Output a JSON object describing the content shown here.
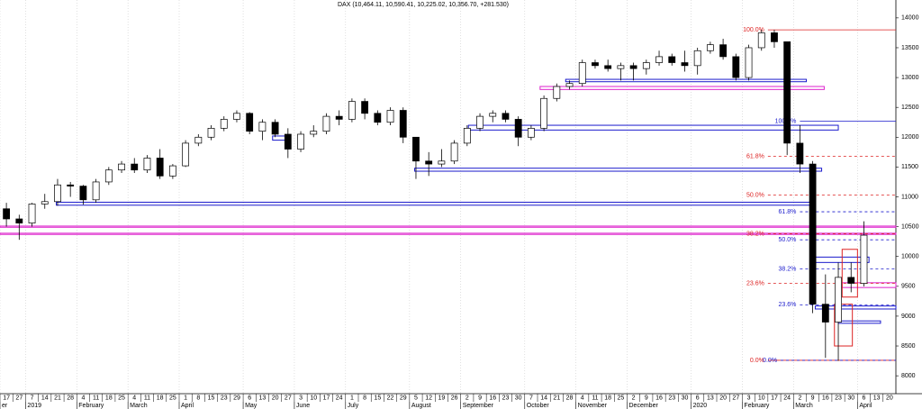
{
  "chart_data": {
    "type": "candlestick",
    "title": "DAX (10,464.11, 10,590.41, 10,225.02, 10,356.70, +281.530)",
    "ylim": [
      7700,
      14300
    ],
    "yticks": [
      8000,
      8500,
      9000,
      9500,
      10000,
      10500,
      11000,
      11500,
      12000,
      12500,
      13000,
      13500,
      14000
    ],
    "months": [
      {
        "name": "er",
        "days": [
          "17",
          "27"
        ]
      },
      {
        "name": "2019",
        "days": [
          "7",
          "14",
          "21",
          "28"
        ]
      },
      {
        "name": "February",
        "days": [
          "4",
          "11",
          "18",
          "25"
        ]
      },
      {
        "name": "March",
        "days": [
          "4",
          "11",
          "18",
          "25"
        ]
      },
      {
        "name": "April",
        "days": [
          "1",
          "8",
          "15",
          "23",
          "29"
        ]
      },
      {
        "name": "May",
        "days": [
          "6",
          "13",
          "20",
          "27"
        ]
      },
      {
        "name": "June",
        "days": [
          "3",
          "10",
          "17",
          "24"
        ]
      },
      {
        "name": "July",
        "days": [
          "1",
          "8",
          "15",
          "22",
          "29"
        ]
      },
      {
        "name": "August",
        "days": [
          "5",
          "12",
          "19",
          "26"
        ]
      },
      {
        "name": "September",
        "days": [
          "2",
          "9",
          "16",
          "23",
          "30"
        ]
      },
      {
        "name": "October",
        "days": [
          "7",
          "14",
          "21",
          "28"
        ]
      },
      {
        "name": "November",
        "days": [
          "4",
          "11",
          "18",
          "25"
        ]
      },
      {
        "name": "December",
        "days": [
          "2",
          "9",
          "16",
          "23",
          "30"
        ]
      },
      {
        "name": "2020",
        "days": [
          "6",
          "13",
          "20",
          "27"
        ]
      },
      {
        "name": "February",
        "days": [
          "3",
          "10",
          "17",
          "24"
        ]
      },
      {
        "name": "March",
        "days": [
          "2",
          "9",
          "16",
          "23",
          "30"
        ]
      },
      {
        "name": "April",
        "days": [
          "6",
          "13",
          "20"
        ]
      }
    ],
    "candles": [
      [
        10800,
        10900,
        10500,
        10630
      ],
      [
        10630,
        10700,
        10280,
        10560
      ],
      [
        10560,
        10900,
        10500,
        10880
      ],
      [
        10880,
        11050,
        10800,
        10920
      ],
      [
        10920,
        11300,
        10850,
        11200
      ],
      [
        11200,
        11250,
        11000,
        11180
      ],
      [
        11180,
        11200,
        10870,
        10950
      ],
      [
        10950,
        11300,
        10900,
        11250
      ],
      [
        11250,
        11500,
        11200,
        11450
      ],
      [
        11450,
        11600,
        11400,
        11550
      ],
      [
        11550,
        11650,
        11400,
        11450
      ],
      [
        11450,
        11700,
        11400,
        11650
      ],
      [
        11650,
        11800,
        11300,
        11350
      ],
      [
        11350,
        11550,
        11300,
        11520
      ],
      [
        11520,
        11950,
        11500,
        11900
      ],
      [
        11900,
        12050,
        11850,
        12000
      ],
      [
        12000,
        12200,
        11950,
        12150
      ],
      [
        12150,
        12350,
        12100,
        12300
      ],
      [
        12300,
        12450,
        12250,
        12400
      ],
      [
        12400,
        12420,
        12050,
        12100
      ],
      [
        12100,
        12300,
        11950,
        12250
      ],
      [
        12250,
        12300,
        12000,
        12050
      ],
      [
        12050,
        12150,
        11650,
        11800
      ],
      [
        11800,
        12100,
        11750,
        12050
      ],
      [
        12050,
        12200,
        12000,
        12100
      ],
      [
        12100,
        12400,
        12050,
        12350
      ],
      [
        12350,
        12450,
        12200,
        12300
      ],
      [
        12300,
        12650,
        12250,
        12600
      ],
      [
        12600,
        12650,
        12300,
        12400
      ],
      [
        12400,
        12450,
        12200,
        12250
      ],
      [
        12250,
        12500,
        12200,
        12450
      ],
      [
        12450,
        12500,
        11900,
        12000
      ],
      [
        12000,
        12000,
        11300,
        11600
      ],
      [
        11600,
        11750,
        11350,
        11550
      ],
      [
        11550,
        11800,
        11500,
        11600
      ],
      [
        11600,
        11950,
        11550,
        11900
      ],
      [
        11900,
        12200,
        11850,
        12150
      ],
      [
        12150,
        12400,
        12100,
        12350
      ],
      [
        12350,
        12450,
        12250,
        12400
      ],
      [
        12400,
        12450,
        12250,
        12300
      ],
      [
        12300,
        12350,
        11850,
        12000
      ],
      [
        12000,
        12200,
        11950,
        12150
      ],
      [
        12150,
        12700,
        12100,
        12650
      ],
      [
        12650,
        12900,
        12600,
        12850
      ],
      [
        12850,
        12950,
        12800,
        12900
      ],
      [
        12900,
        13300,
        12850,
        13250
      ],
      [
        13250,
        13300,
        13150,
        13200
      ],
      [
        13200,
        13300,
        13100,
        13150
      ],
      [
        13150,
        13250,
        12950,
        13200
      ],
      [
        13200,
        13250,
        12950,
        13150
      ],
      [
        13150,
        13300,
        13050,
        13250
      ],
      [
        13250,
        13450,
        13200,
        13350
      ],
      [
        13350,
        13400,
        13200,
        13250
      ],
      [
        13250,
        13450,
        13100,
        13200
      ],
      [
        13200,
        13500,
        13050,
        13450
      ],
      [
        13450,
        13600,
        13400,
        13550
      ],
      [
        13550,
        13650,
        13300,
        13350
      ],
      [
        13350,
        13400,
        12950,
        13000
      ],
      [
        13000,
        13550,
        12950,
        13500
      ],
      [
        13500,
        13800,
        13450,
        13750
      ],
      [
        13750,
        13800,
        13500,
        13600
      ],
      [
        13600,
        13600,
        11700,
        11900
      ],
      [
        11900,
        12200,
        11400,
        11550
      ],
      [
        11550,
        11600,
        9050,
        9200
      ],
      [
        9200,
        9700,
        8300,
        8900
      ],
      [
        8900,
        9900,
        8250,
        9650
      ],
      [
        9650,
        9900,
        9400,
        9550
      ],
      [
        9550,
        10590,
        9500,
        10357
      ]
    ],
    "zones": [
      {
        "from": 3.9,
        "to": 62.8,
        "low": 10860,
        "high": 10910,
        "color": "#1a1acc"
      },
      {
        "from": 31.9,
        "to": 63.7,
        "low": 11430,
        "high": 11480,
        "color": "#1a1acc"
      },
      {
        "from": 36.1,
        "to": 65,
        "low": 12120,
        "high": 12200,
        "color": "#1a1acc"
      },
      {
        "from": 43.7,
        "to": 62.5,
        "low": 12930,
        "high": 12970,
        "color": "#1a1acc"
      },
      {
        "from": 20.8,
        "to": 22,
        "low": 11950,
        "high": 12020,
        "color": "#1a1acc"
      },
      {
        "from": 63.2,
        "to": 67.4,
        "low": 9900,
        "high": 9990,
        "color": "#1a1acc"
      },
      {
        "from": 63.2,
        "to": 69.5,
        "low": 9120,
        "high": 9170,
        "color": "#1a1acc"
      },
      {
        "from": 65,
        "to": 68.3,
        "low": 8880,
        "high": 8920,
        "color": "#1a1acc"
      },
      {
        "from": -0.5,
        "to": 69.5,
        "low": 10490,
        "high": 10510,
        "color": "#dd22cc"
      },
      {
        "from": -0.5,
        "to": 69.5,
        "low": 10370,
        "high": 10390,
        "color": "#dd22cc"
      },
      {
        "from": 41.7,
        "to": 63.9,
        "low": 12800,
        "high": 12850,
        "color": "#dd22cc"
      },
      {
        "from": 65.3,
        "to": 69.5,
        "low": 9480,
        "high": 9560,
        "color": "#dd22cc"
      },
      {
        "from": 65.3,
        "to": 66.5,
        "low": 9320,
        "high": 10120,
        "color": "#dd2222"
      },
      {
        "from": 64.7,
        "to": 66.1,
        "low": 8500,
        "high": 9200,
        "color": "#dd2222"
      }
    ],
    "fib_levels": [
      {
        "name": "100.0%",
        "value": 13800,
        "color": "#dd2222",
        "style": "solid",
        "from": 59.5
      },
      {
        "name": "61.8%",
        "value": 11680,
        "color": "#dd2222",
        "style": "dashed",
        "from": 59.5
      },
      {
        "name": "50.0%",
        "value": 11030,
        "color": "#dd2222",
        "style": "dashed",
        "from": 59.5
      },
      {
        "name": "38.2%",
        "value": 10380,
        "color": "#dd2222",
        "style": "dashed",
        "from": 59.5
      },
      {
        "name": "23.6%",
        "value": 9550,
        "color": "#dd2222",
        "style": "dashed",
        "from": 59.5
      },
      {
        "name": "0.0%",
        "value": 8260,
        "color": "#dd2222",
        "style": "solid",
        "from": 59.5
      },
      {
        "name": "100.0%",
        "value": 12270,
        "color": "#1a1acc",
        "style": "solid",
        "from": 62
      },
      {
        "name": "61.8%",
        "value": 10750,
        "color": "#1a1acc",
        "style": "dashed",
        "from": 62
      },
      {
        "name": "50.0%",
        "value": 10280,
        "color": "#1a1acc",
        "style": "dashed",
        "from": 62
      },
      {
        "name": "38.2%",
        "value": 9790,
        "color": "#1a1acc",
        "style": "dashed",
        "from": 62
      },
      {
        "name": "23.6%",
        "value": 9190,
        "color": "#1a1acc",
        "style": "dashed",
        "from": 62
      },
      {
        "name": "0.0%",
        "value": 8260,
        "color": "#1a1acc",
        "style": "dashed",
        "from": 60.5
      }
    ]
  }
}
